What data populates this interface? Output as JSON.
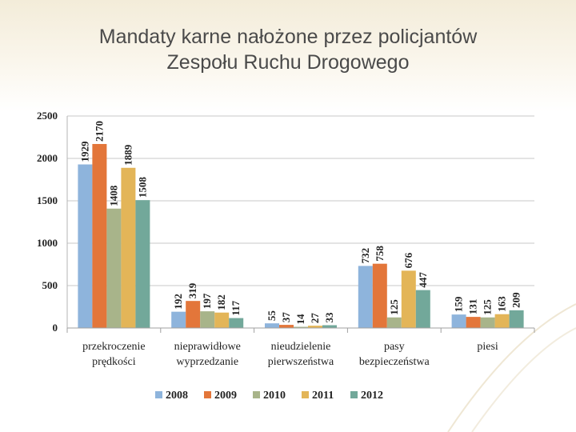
{
  "title": {
    "line1": "Mandaty karne nałożone przez policjantów",
    "line2": "Zespołu Ruchu Drogowego"
  },
  "colors": {
    "2008": "#8eb4dc",
    "2009": "#e3763a",
    "2010": "#a8b48a",
    "2011": "#e3b558",
    "2012": "#72a89a"
  },
  "chart_data": {
    "type": "bar",
    "title": "Mandaty karne nałożone przez policjantów Zespołu Ruchu Drogowego",
    "xlabel": "",
    "ylabel": "",
    "ylim": [
      0,
      2500
    ],
    "yticks": [
      0,
      500,
      1000,
      1500,
      2000,
      2500
    ],
    "grid": true,
    "legend": "bottom",
    "categories": [
      [
        "przekroczenie",
        "prędkości"
      ],
      [
        "nieprawidłowe",
        "wyprzedzanie"
      ],
      [
        "nieudzielenie",
        "pierwszeństwa"
      ],
      [
        "pasy",
        "bezpieczeństwa"
      ],
      [
        "piesi"
      ]
    ],
    "series": [
      {
        "name": "2008",
        "values": [
          1929,
          192,
          55,
          732,
          159
        ]
      },
      {
        "name": "2009",
        "values": [
          2170,
          319,
          37,
          758,
          131
        ]
      },
      {
        "name": "2010",
        "values": [
          1408,
          197,
          14,
          125,
          125
        ]
      },
      {
        "name": "2011",
        "values": [
          1889,
          182,
          27,
          676,
          163
        ]
      },
      {
        "name": "2012",
        "values": [
          1508,
          117,
          33,
          447,
          209
        ]
      }
    ]
  }
}
